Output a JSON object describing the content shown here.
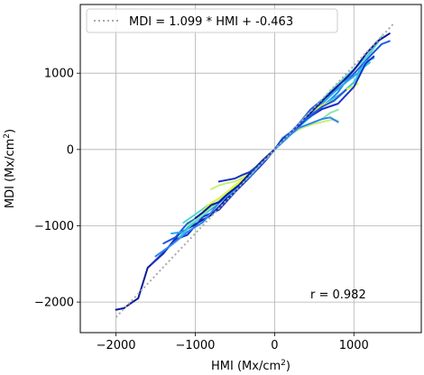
{
  "chart_data": {
    "type": "line",
    "xlabel": "HMI (Mx/cm",
    "xlabel_sup": "2",
    "xlabel_tail": ")",
    "ylabel": "MDI (Mx/cm",
    "ylabel_sup": "2",
    "ylabel_tail": ")",
    "xlim": [
      -2450,
      1850
    ],
    "ylim": [
      -2400,
      1900
    ],
    "xticks": [
      -2000,
      -1000,
      0,
      1000
    ],
    "yticks": [
      -2000,
      -1000,
      0,
      1000
    ],
    "xtick_labels": [
      "−2000",
      "−1000",
      "0",
      "1000"
    ],
    "ytick_labels": [
      "−2000",
      "−1000",
      "0",
      "1000"
    ],
    "grid": true,
    "legend": {
      "placement": "top-left",
      "entries": [
        "MDI = 1.099 * HMI + -0.463"
      ]
    },
    "fit": {
      "slope": 1.099,
      "intercept": -0.463,
      "x_range": [
        -2000,
        1500
      ],
      "color": "#a9a9a9",
      "style": "dotted"
    },
    "annotation": "r = 0.982",
    "colors": [
      "#0a1a9c",
      "#1733c4",
      "#1f58e0",
      "#2e86f0",
      "#29a8ee",
      "#2ec8df",
      "#52dbc4",
      "#8fe6a6",
      "#c7f075",
      "#e6f43c"
    ],
    "series": [
      {
        "x": [
          -2000,
          -1900,
          -1820,
          -1720,
          -1600,
          -1400,
          -1200,
          -1000,
          -800,
          -600,
          -400,
          -200,
          0
        ],
        "y": [
          -2100,
          -2080,
          -2020,
          -1950,
          -1550,
          -1360,
          -1100,
          -980,
          -860,
          -640,
          -420,
          -240,
          0
        ]
      },
      {
        "x": [
          -1550,
          -1400,
          -1250,
          -1100,
          -900,
          -700,
          -500,
          -300,
          -100,
          0
        ],
        "y": [
          -1500,
          -1350,
          -1180,
          -1120,
          -880,
          -790,
          -560,
          -350,
          -130,
          0
        ]
      },
      {
        "x": [
          -1400,
          -1250,
          -1100,
          -950,
          -800,
          -600,
          -400,
          -200,
          0
        ],
        "y": [
          -1230,
          -1150,
          -970,
          -880,
          -780,
          -600,
          -430,
          -210,
          0
        ]
      },
      {
        "x": [
          -1500,
          -1300,
          -1100,
          -900,
          -700,
          -500,
          -300,
          -100,
          0
        ],
        "y": [
          -1400,
          -1250,
          -1080,
          -950,
          -700,
          -530,
          -280,
          -120,
          0
        ]
      },
      {
        "x": [
          -1300,
          -1150,
          -1000,
          -850,
          -700,
          -500,
          -300,
          -100,
          0
        ],
        "y": [
          -1100,
          -1080,
          -920,
          -820,
          -680,
          -520,
          -340,
          -100,
          0
        ]
      },
      {
        "x": [
          -1200,
          -1050,
          -900,
          -750,
          -600,
          -450,
          -300,
          -150,
          0
        ],
        "y": [
          -1150,
          -990,
          -860,
          -720,
          -590,
          -460,
          -290,
          -160,
          0
        ]
      },
      {
        "x": [
          -1150,
          -1000,
          -850,
          -700,
          -550,
          -400,
          -250,
          -100,
          0
        ],
        "y": [
          -960,
          -850,
          -740,
          -640,
          -520,
          -400,
          -250,
          -90,
          0
        ]
      },
      {
        "x": [
          -1100,
          -950,
          -800,
          -650,
          -500,
          -350,
          -200,
          -100,
          0
        ],
        "y": [
          -1000,
          -890,
          -760,
          -640,
          -480,
          -350,
          -200,
          -100,
          0
        ]
      },
      {
        "x": [
          -800,
          -700,
          -600,
          -500,
          -400,
          -300,
          -200,
          -100,
          0
        ],
        "y": [
          -520,
          -470,
          -440,
          -420,
          -370,
          -300,
          -200,
          -110,
          0
        ]
      },
      {
        "x": [
          -900,
          -800,
          -700,
          -600,
          -500,
          -400,
          -300,
          -150,
          0
        ],
        "y": [
          -800,
          -700,
          -640,
          -560,
          -470,
          -390,
          -290,
          -140,
          0
        ]
      },
      {
        "x": [
          -1000,
          -900,
          -800,
          -700,
          -600,
          -450,
          -300,
          -150,
          0
        ],
        "y": [
          -900,
          -820,
          -730,
          -690,
          -590,
          -470,
          -300,
          -140,
          0
        ]
      },
      {
        "x": [
          -700,
          -600,
          -500,
          -400,
          -300,
          -200,
          -100,
          0
        ],
        "y": [
          -420,
          -400,
          -380,
          -330,
          -290,
          -200,
          -100,
          0
        ]
      },
      {
        "x": [
          0,
          150,
          300,
          450,
          600,
          750,
          900,
          1050,
          1200,
          1350,
          1450
        ],
        "y": [
          0,
          160,
          330,
          520,
          650,
          760,
          880,
          1050,
          1220,
          1380,
          1420
        ]
      },
      {
        "x": [
          0,
          100,
          250,
          400,
          550,
          700,
          800,
          900,
          1000,
          1100,
          1200,
          1300
        ],
        "y": [
          0,
          150,
          260,
          450,
          520,
          650,
          750,
          900,
          1050,
          1150,
          1260,
          1400
        ]
      },
      {
        "x": [
          0,
          150,
          300,
          450,
          600,
          750,
          900,
          1050,
          1150,
          1250
        ],
        "y": [
          0,
          170,
          310,
          450,
          600,
          750,
          880,
          1000,
          1150,
          1200
        ]
      },
      {
        "x": [
          0,
          120,
          260,
          400,
          550,
          700,
          850,
          1000,
          1100,
          1200
        ],
        "y": [
          0,
          140,
          260,
          380,
          520,
          640,
          740,
          880,
          1060,
          1140
        ]
      },
      {
        "x": [
          0,
          150,
          300,
          450,
          600,
          750,
          900,
          1050,
          1200,
          1350
        ],
        "y": [
          0,
          140,
          300,
          470,
          650,
          810,
          960,
          1100,
          1250,
          1480
        ]
      },
      {
        "x": [
          0,
          100,
          200,
          300,
          400,
          500,
          600,
          700,
          800
        ],
        "y": [
          0,
          120,
          200,
          260,
          310,
          360,
          400,
          480,
          520
        ]
      },
      {
        "x": [
          0,
          120,
          240,
          360,
          480,
          600,
          720,
          800
        ],
        "y": [
          0,
          130,
          230,
          290,
          330,
          360,
          390,
          380
        ]
      },
      {
        "x": [
          0,
          150,
          300,
          450,
          600,
          750,
          900,
          1050
        ],
        "y": [
          0,
          160,
          320,
          480,
          580,
          640,
          780,
          860
        ]
      },
      {
        "x": [
          0,
          100,
          250,
          400,
          550,
          700,
          850,
          1000,
          1150,
          1300,
          1450
        ],
        "y": [
          0,
          130,
          270,
          420,
          580,
          740,
          880,
          1040,
          1250,
          1420,
          1520
        ]
      },
      {
        "x": [
          0,
          200,
          400,
          600,
          800,
          1000,
          1150,
          1250
        ],
        "y": [
          0,
          200,
          400,
          530,
          600,
          820,
          1130,
          1220
        ]
      },
      {
        "x": [
          0,
          150,
          300,
          450,
          600,
          750,
          900
        ],
        "y": [
          0,
          170,
          330,
          440,
          560,
          640,
          780
        ]
      },
      {
        "x": [
          0,
          150,
          300,
          450,
          600,
          700,
          800
        ],
        "y": [
          0,
          150,
          280,
          340,
          400,
          420,
          360
        ]
      }
    ]
  }
}
